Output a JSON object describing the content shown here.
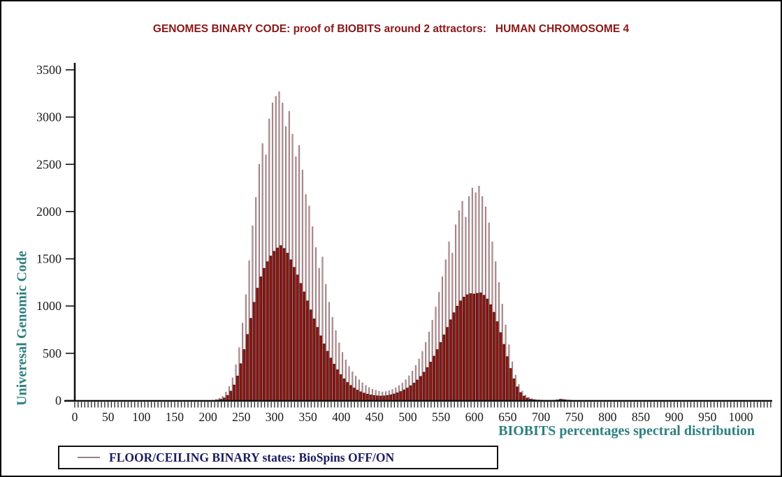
{
  "window": {
    "background": "#ffffff",
    "frame_border": "#000000"
  },
  "colors": {
    "title_maroon": "#8b1818",
    "teal_axis_label": "#2e7f7f",
    "axis_line": "#111111",
    "tick_label": "#1a1a1a",
    "legend_text": "#1b1b60",
    "legend_marker": "#9a8084",
    "ceiling_bar_fill": "#b79598",
    "ceiling_bar_edge": "#8a696d",
    "floor_bar_fill": "#941610",
    "floor_bar_edge": "#350505"
  },
  "chart_data": {
    "type": "bar",
    "title": "GENOMES BINARY CODE: proof of BIOBITS around 2 attractors:   HUMAN CHROMOSOME 4",
    "xlabel": "BIOBITS percentages spectral distribution",
    "ylabel": "Univeresal Genomic Code",
    "xlim": [
      0,
      1000
    ],
    "ylim": [
      0,
      3500
    ],
    "x_label_step": 50,
    "x_minor_tick_step": 5,
    "y_tick_step": 500,
    "grid": false,
    "legend_position": "bottom-left",
    "legend_label": "FLOOR/CEILING BINARY states: BioSpins OFF/ON",
    "description": "Bimodal spectral histogram; two attractors near BIOBITS 305 and 605. Tall thin light bars = CEILING state, solid dark red bars = FLOOR state.",
    "x": [
      200,
      205,
      210,
      215,
      220,
      225,
      230,
      235,
      240,
      245,
      250,
      255,
      260,
      265,
      270,
      275,
      280,
      285,
      290,
      295,
      300,
      305,
      310,
      315,
      320,
      325,
      330,
      335,
      340,
      345,
      350,
      355,
      360,
      365,
      370,
      375,
      380,
      385,
      390,
      395,
      400,
      405,
      410,
      415,
      420,
      425,
      430,
      435,
      440,
      445,
      450,
      455,
      460,
      465,
      470,
      475,
      480,
      485,
      490,
      495,
      500,
      505,
      510,
      515,
      520,
      525,
      530,
      535,
      540,
      545,
      550,
      555,
      560,
      565,
      570,
      575,
      580,
      585,
      590,
      595,
      600,
      605,
      610,
      615,
      620,
      625,
      630,
      635,
      640,
      645,
      650,
      655,
      660,
      665,
      670,
      675,
      680,
      685,
      690,
      695,
      700,
      705,
      710,
      715,
      720,
      725,
      730,
      735,
      740,
      745,
      750,
      755
    ],
    "series": [
      {
        "name": "CEILING state (BioSpins ON)",
        "color": "#b79598",
        "edge_color": "#8a696d",
        "values": [
          0,
          5,
          12,
          25,
          45,
          90,
          150,
          240,
          380,
          560,
          820,
          1120,
          1480,
          1850,
          2150,
          2500,
          2720,
          2600,
          2980,
          3150,
          3220,
          3270,
          3150,
          2900,
          3060,
          2820,
          2580,
          2700,
          2440,
          2180,
          2060,
          1840,
          1620,
          1400,
          1520,
          1230,
          1040,
          880,
          740,
          610,
          510,
          430,
          360,
          305,
          258,
          220,
          188,
          160,
          138,
          120,
          108,
          98,
          92,
          96,
          105,
          118,
          135,
          158,
          185,
          220,
          262,
          312,
          372,
          440,
          520,
          615,
          725,
          850,
          990,
          1145,
          1310,
          1490,
          1680,
          1560,
          1860,
          2010,
          2110,
          1940,
          2160,
          2250,
          2200,
          2270,
          2160,
          2050,
          1880,
          1680,
          1470,
          1250,
          1020,
          800,
          590,
          410,
          270,
          170,
          100,
          58,
          34,
          20,
          12,
          8,
          6,
          5,
          4,
          4,
          5,
          9,
          16,
          11,
          7,
          4,
          2,
          0
        ]
      },
      {
        "name": "FLOOR state (BioSpins OFF)",
        "color": "#941610",
        "edge_color": "#350505",
        "values": [
          0,
          0,
          2,
          6,
          14,
          28,
          55,
          100,
          165,
          260,
          390,
          540,
          700,
          870,
          1040,
          1190,
          1310,
          1400,
          1470,
          1530,
          1580,
          1615,
          1640,
          1610,
          1560,
          1490,
          1410,
          1330,
          1240,
          1150,
          1055,
          960,
          865,
          775,
          685,
          600,
          522,
          450,
          385,
          326,
          274,
          230,
          192,
          160,
          133,
          111,
          93,
          79,
          68,
          60,
          54,
          50,
          48,
          50,
          54,
          61,
          70,
          82,
          96,
          113,
          133,
          157,
          185,
          218,
          256,
          300,
          350,
          407,
          470,
          540,
          615,
          695,
          775,
          855,
          930,
          1000,
          1055,
          1095,
          1120,
          1132,
          1128,
          1135,
          1140,
          1115,
          1075,
          1015,
          935,
          835,
          720,
          595,
          465,
          340,
          230,
          145,
          85,
          48,
          27,
          15,
          9,
          5,
          3,
          2,
          2,
          2,
          3,
          7,
          14,
          9,
          5,
          3,
          1,
          0
        ]
      }
    ]
  }
}
